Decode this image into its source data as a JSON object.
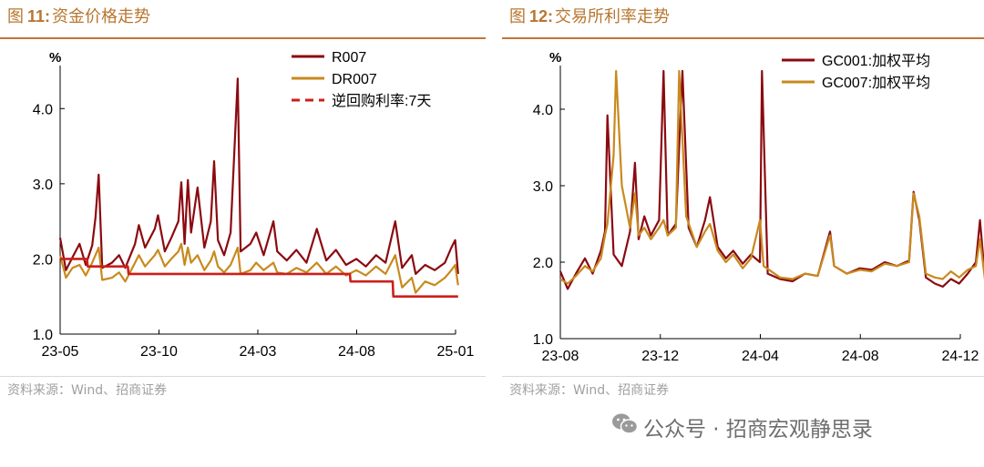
{
  "colors": {
    "r007": "#8b0a10",
    "dr007": "#c88a1e",
    "policy": "#cc1f1a",
    "accent": "#b8762f"
  },
  "left": {
    "title_prefix": "图",
    "title_num": "11:",
    "title_text": "资金价格走势",
    "source": "资料来源：Wind、招商证券"
  },
  "right": {
    "title_prefix": "图",
    "title_num": "12:",
    "title_text": "交易所利率走势",
    "source": "资料来源：Wind、招商证券"
  },
  "watermark": {
    "icon": "wechat-icon",
    "text": "公众号 · 招商宏观静思录"
  },
  "chart_data": [
    {
      "type": "line",
      "unit": "%",
      "ylim": [
        1.0,
        4.5
      ],
      "yticks": [
        "1.0",
        "2.0",
        "3.0",
        "4.0"
      ],
      "x_ticks": [
        "23-05",
        "23-10",
        "24-03",
        "24-08",
        "25-01"
      ],
      "xlim": [
        "2023-05",
        "2025-01"
      ],
      "legend_position": "top-right",
      "series": [
        {
          "name": "R007",
          "color": "#8b0a10",
          "points": [
            [
              "2023-05-01",
              2.28
            ],
            [
              "2023-05-10",
              1.85
            ],
            [
              "2023-05-20",
              2.02
            ],
            [
              "2023-05-31",
              2.2
            ],
            [
              "2023-06-10",
              1.92
            ],
            [
              "2023-06-20",
              2.18
            ],
            [
              "2023-06-25",
              2.55
            ],
            [
              "2023-06-30",
              3.12
            ],
            [
              "2023-07-05",
              1.88
            ],
            [
              "2023-07-20",
              1.95
            ],
            [
              "2023-07-31",
              2.05
            ],
            [
              "2023-08-10",
              1.88
            ],
            [
              "2023-08-25",
              2.2
            ],
            [
              "2023-08-31",
              2.45
            ],
            [
              "2023-09-10",
              2.15
            ],
            [
              "2023-09-25",
              2.4
            ],
            [
              "2023-09-30",
              2.58
            ],
            [
              "2023-10-10",
              2.1
            ],
            [
              "2023-10-20",
              2.28
            ],
            [
              "2023-10-31",
              2.5
            ],
            [
              "2023-11-05",
              3.02
            ],
            [
              "2023-11-10",
              2.2
            ],
            [
              "2023-11-15",
              3.05
            ],
            [
              "2023-11-20",
              2.35
            ],
            [
              "2023-11-30",
              2.95
            ],
            [
              "2023-12-10",
              2.15
            ],
            [
              "2023-12-20",
              2.5
            ],
            [
              "2023-12-25",
              3.3
            ],
            [
              "2023-12-31",
              2.25
            ],
            [
              "2024-01-10",
              2.05
            ],
            [
              "2024-01-20",
              2.35
            ],
            [
              "2024-01-31",
              4.4
            ],
            [
              "2024-02-05",
              2.1
            ],
            [
              "2024-02-20",
              2.2
            ],
            [
              "2024-02-29",
              2.35
            ],
            [
              "2024-03-10",
              2.05
            ],
            [
              "2024-03-25",
              2.5
            ],
            [
              "2024-03-31",
              2.1
            ],
            [
              "2024-04-15",
              1.98
            ],
            [
              "2024-04-30",
              2.12
            ],
            [
              "2024-05-15",
              1.95
            ],
            [
              "2024-05-31",
              2.4
            ],
            [
              "2024-06-15",
              1.98
            ],
            [
              "2024-06-30",
              2.12
            ],
            [
              "2024-07-15",
              1.92
            ],
            [
              "2024-07-31",
              2.0
            ],
            [
              "2024-08-15",
              1.9
            ],
            [
              "2024-08-31",
              2.05
            ],
            [
              "2024-09-15",
              1.95
            ],
            [
              "2024-09-30",
              2.5
            ],
            [
              "2024-10-10",
              1.88
            ],
            [
              "2024-10-25",
              2.05
            ],
            [
              "2024-10-31",
              1.8
            ],
            [
              "2024-11-15",
              1.92
            ],
            [
              "2024-11-30",
              1.85
            ],
            [
              "2024-12-15",
              1.95
            ],
            [
              "2024-12-25",
              2.15
            ],
            [
              "2024-12-31",
              2.25
            ],
            [
              "2025-01-05",
              1.8
            ]
          ]
        },
        {
          "name": "DR007",
          "color": "#c88a1e",
          "points": [
            [
              "2023-05-01",
              2.05
            ],
            [
              "2023-05-10",
              1.75
            ],
            [
              "2023-05-20",
              1.88
            ],
            [
              "2023-05-31",
              1.92
            ],
            [
              "2023-06-10",
              1.78
            ],
            [
              "2023-06-20",
              1.95
            ],
            [
              "2023-06-30",
              2.15
            ],
            [
              "2023-07-05",
              1.72
            ],
            [
              "2023-07-20",
              1.75
            ],
            [
              "2023-07-31",
              1.82
            ],
            [
              "2023-08-10",
              1.7
            ],
            [
              "2023-08-25",
              1.95
            ],
            [
              "2023-08-31",
              2.05
            ],
            [
              "2023-09-10",
              1.9
            ],
            [
              "2023-09-25",
              2.05
            ],
            [
              "2023-09-30",
              2.12
            ],
            [
              "2023-10-10",
              1.9
            ],
            [
              "2023-10-20",
              2.0
            ],
            [
              "2023-10-31",
              2.1
            ],
            [
              "2023-11-05",
              2.2
            ],
            [
              "2023-11-10",
              1.92
            ],
            [
              "2023-11-15",
              2.15
            ],
            [
              "2023-11-20",
              1.95
            ],
            [
              "2023-11-30",
              2.05
            ],
            [
              "2023-12-10",
              1.85
            ],
            [
              "2023-12-20",
              1.98
            ],
            [
              "2023-12-25",
              2.1
            ],
            [
              "2023-12-31",
              1.9
            ],
            [
              "2024-01-10",
              1.82
            ],
            [
              "2024-01-20",
              1.92
            ],
            [
              "2024-01-31",
              2.15
            ],
            [
              "2024-02-05",
              1.8
            ],
            [
              "2024-02-20",
              1.85
            ],
            [
              "2024-02-29",
              1.95
            ],
            [
              "2024-03-10",
              1.85
            ],
            [
              "2024-03-25",
              1.95
            ],
            [
              "2024-03-31",
              1.82
            ],
            [
              "2024-04-15",
              1.8
            ],
            [
              "2024-04-30",
              1.88
            ],
            [
              "2024-05-15",
              1.82
            ],
            [
              "2024-05-31",
              1.95
            ],
            [
              "2024-06-15",
              1.8
            ],
            [
              "2024-06-30",
              1.9
            ],
            [
              "2024-07-15",
              1.78
            ],
            [
              "2024-07-31",
              1.85
            ],
            [
              "2024-08-15",
              1.78
            ],
            [
              "2024-08-31",
              1.9
            ],
            [
              "2024-09-15",
              1.8
            ],
            [
              "2024-09-30",
              2.05
            ],
            [
              "2024-10-10",
              1.62
            ],
            [
              "2024-10-25",
              1.75
            ],
            [
              "2024-10-31",
              1.55
            ],
            [
              "2024-11-15",
              1.7
            ],
            [
              "2024-11-30",
              1.65
            ],
            [
              "2024-12-15",
              1.75
            ],
            [
              "2024-12-25",
              1.85
            ],
            [
              "2024-12-31",
              1.92
            ],
            [
              "2025-01-05",
              1.65
            ]
          ]
        },
        {
          "name": "逆回购利率:7天",
          "color": "#cc1f1a",
          "dashed_legend": true,
          "points": [
            [
              "2023-05-01",
              2.0
            ],
            [
              "2023-06-12",
              2.0
            ],
            [
              "2023-06-13",
              1.9
            ],
            [
              "2023-08-14",
              1.9
            ],
            [
              "2023-08-15",
              1.8
            ],
            [
              "2024-07-21",
              1.8
            ],
            [
              "2024-07-22",
              1.7
            ],
            [
              "2024-09-26",
              1.7
            ],
            [
              "2024-09-27",
              1.5
            ],
            [
              "2025-01-05",
              1.5
            ]
          ]
        }
      ]
    },
    {
      "type": "line",
      "unit": "%",
      "ylim": [
        1.0,
        4.5
      ],
      "yticks": [
        "1.0",
        "2.0",
        "3.0",
        "4.0"
      ],
      "x_ticks": [
        "23-08",
        "23-12",
        "24-04",
        "24-08",
        "24-12"
      ],
      "xlim": [
        "2023-08",
        "2024-12"
      ],
      "legend_position": "top-right",
      "series": [
        {
          "name": "GC001:加权平均",
          "color": "#8b0a10",
          "points": [
            [
              "2023-08-01",
              1.88
            ],
            [
              "2023-08-10",
              1.65
            ],
            [
              "2023-08-20",
              1.85
            ],
            [
              "2023-08-31",
              2.05
            ],
            [
              "2023-09-10",
              1.85
            ],
            [
              "2023-09-20",
              2.15
            ],
            [
              "2023-09-25",
              2.4
            ],
            [
              "2023-09-28",
              3.92
            ],
            [
              "2023-10-05",
              2.1
            ],
            [
              "2023-10-15",
              1.95
            ],
            [
              "2023-10-25",
              2.4
            ],
            [
              "2023-10-31",
              3.3
            ],
            [
              "2023-11-05",
              2.3
            ],
            [
              "2023-11-12",
              2.6
            ],
            [
              "2023-11-20",
              2.35
            ],
            [
              "2023-11-30",
              2.55
            ],
            [
              "2023-12-05",
              4.5
            ],
            [
              "2023-12-10",
              2.35
            ],
            [
              "2023-12-20",
              2.5
            ],
            [
              "2023-12-28",
              4.5
            ],
            [
              "2024-01-05",
              2.45
            ],
            [
              "2024-01-15",
              2.2
            ],
            [
              "2024-01-25",
              2.55
            ],
            [
              "2024-01-31",
              2.85
            ],
            [
              "2024-02-10",
              2.2
            ],
            [
              "2024-02-20",
              2.05
            ],
            [
              "2024-02-29",
              2.15
            ],
            [
              "2024-03-10",
              1.98
            ],
            [
              "2024-03-20",
              2.1
            ],
            [
              "2024-03-31",
              2.0
            ],
            [
              "2024-04-03",
              4.5
            ],
            [
              "2024-04-10",
              1.85
            ],
            [
              "2024-04-25",
              1.78
            ],
            [
              "2024-05-10",
              1.75
            ],
            [
              "2024-05-25",
              1.85
            ],
            [
              "2024-06-10",
              1.82
            ],
            [
              "2024-06-25",
              2.4
            ],
            [
              "2024-06-30",
              1.95
            ],
            [
              "2024-07-15",
              1.85
            ],
            [
              "2024-07-31",
              1.92
            ],
            [
              "2024-08-15",
              1.9
            ],
            [
              "2024-08-31",
              2.0
            ],
            [
              "2024-09-15",
              1.95
            ],
            [
              "2024-09-30",
              2.02
            ],
            [
              "2024-10-05",
              2.92
            ],
            [
              "2024-10-12",
              2.55
            ],
            [
              "2024-10-20",
              1.8
            ],
            [
              "2024-10-31",
              1.72
            ],
            [
              "2024-11-10",
              1.68
            ],
            [
              "2024-11-20",
              1.78
            ],
            [
              "2024-11-30",
              1.72
            ],
            [
              "2024-12-10",
              1.85
            ],
            [
              "2024-12-20",
              2.0
            ],
            [
              "2024-12-25",
              2.55
            ],
            [
              "2024-12-31",
              1.8
            ]
          ]
        },
        {
          "name": "GC007:加权平均",
          "color": "#c88a1e",
          "points": [
            [
              "2023-08-01",
              1.78
            ],
            [
              "2023-08-10",
              1.72
            ],
            [
              "2023-08-20",
              1.82
            ],
            [
              "2023-08-31",
              1.95
            ],
            [
              "2023-09-10",
              1.88
            ],
            [
              "2023-09-20",
              2.05
            ],
            [
              "2023-09-25",
              2.35
            ],
            [
              "2023-09-28",
              2.5
            ],
            [
              "2023-10-05",
              3.4
            ],
            [
              "2023-10-08",
              4.5
            ],
            [
              "2023-10-15",
              3.0
            ],
            [
              "2023-10-25",
              2.45
            ],
            [
              "2023-10-31",
              2.9
            ],
            [
              "2023-11-05",
              2.35
            ],
            [
              "2023-11-12",
              2.45
            ],
            [
              "2023-11-20",
              2.3
            ],
            [
              "2023-11-30",
              2.45
            ],
            [
              "2023-12-05",
              2.55
            ],
            [
              "2023-12-10",
              2.35
            ],
            [
              "2023-12-20",
              2.45
            ],
            [
              "2023-12-24",
              4.5
            ],
            [
              "2024-01-02",
              2.6
            ],
            [
              "2024-01-15",
              2.2
            ],
            [
              "2024-01-25",
              2.4
            ],
            [
              "2024-01-31",
              2.5
            ],
            [
              "2024-02-10",
              2.15
            ],
            [
              "2024-02-20",
              2.0
            ],
            [
              "2024-02-29",
              2.1
            ],
            [
              "2024-03-10",
              1.92
            ],
            [
              "2024-03-20",
              2.05
            ],
            [
              "2024-03-31",
              2.55
            ],
            [
              "2024-04-05",
              1.95
            ],
            [
              "2024-04-25",
              1.8
            ],
            [
              "2024-05-10",
              1.78
            ],
            [
              "2024-05-25",
              1.85
            ],
            [
              "2024-06-10",
              1.82
            ],
            [
              "2024-06-25",
              2.35
            ],
            [
              "2024-06-30",
              1.95
            ],
            [
              "2024-07-15",
              1.85
            ],
            [
              "2024-07-31",
              1.9
            ],
            [
              "2024-08-15",
              1.88
            ],
            [
              "2024-08-31",
              1.98
            ],
            [
              "2024-09-15",
              1.95
            ],
            [
              "2024-09-30",
              2.0
            ],
            [
              "2024-10-05",
              2.9
            ],
            [
              "2024-10-12",
              2.6
            ],
            [
              "2024-10-20",
              1.85
            ],
            [
              "2024-10-31",
              1.8
            ],
            [
              "2024-11-10",
              1.78
            ],
            [
              "2024-11-20",
              1.88
            ],
            [
              "2024-11-30",
              1.8
            ],
            [
              "2024-12-10",
              1.9
            ],
            [
              "2024-12-20",
              1.95
            ],
            [
              "2024-12-25",
              2.3
            ],
            [
              "2024-12-31",
              1.78
            ]
          ]
        }
      ]
    }
  ]
}
